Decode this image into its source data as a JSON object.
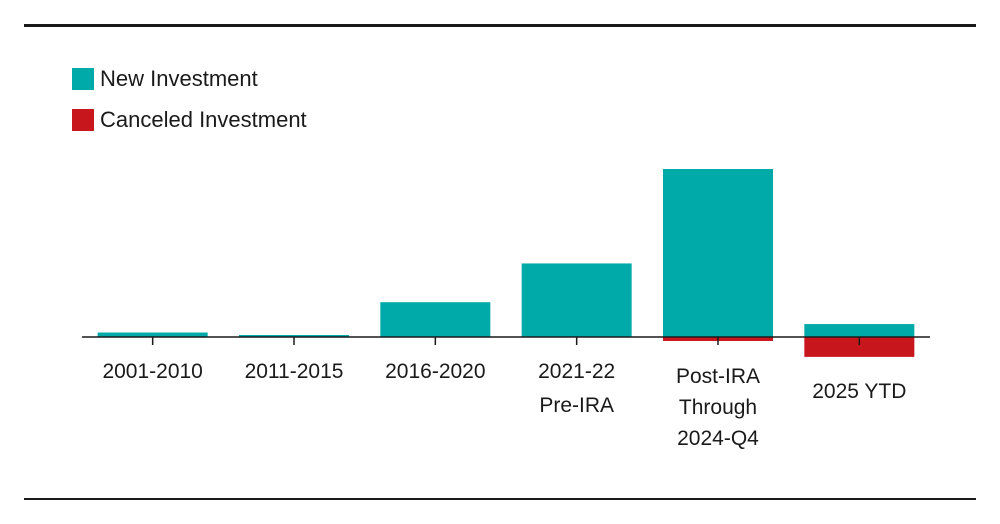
{
  "chart_data": {
    "type": "bar",
    "stacked": "diverging",
    "categories": [
      [
        "2001-2010"
      ],
      [
        "2011-2015"
      ],
      [
        "2016-2020"
      ],
      [
        "2021-22",
        "Pre-IRA"
      ],
      [
        "Post-IRA",
        "Through",
        "2024-Q4"
      ],
      [
        "2025 YTD"
      ]
    ],
    "series": [
      {
        "name": "New Investment",
        "color": "#00aaa8",
        "values": [
          4.5,
          2.0,
          35.0,
          74.0,
          169.0,
          13.0
        ]
      },
      {
        "name": "Canceled Investment",
        "color": "#c8161d",
        "values": [
          0,
          0,
          0,
          0,
          -4.0,
          -20.0
        ]
      }
    ],
    "ylim": [
      -20,
      169
    ],
    "grid": false,
    "legend_position": "top-left",
    "title": "",
    "xlabel": "",
    "ylabel": ""
  }
}
